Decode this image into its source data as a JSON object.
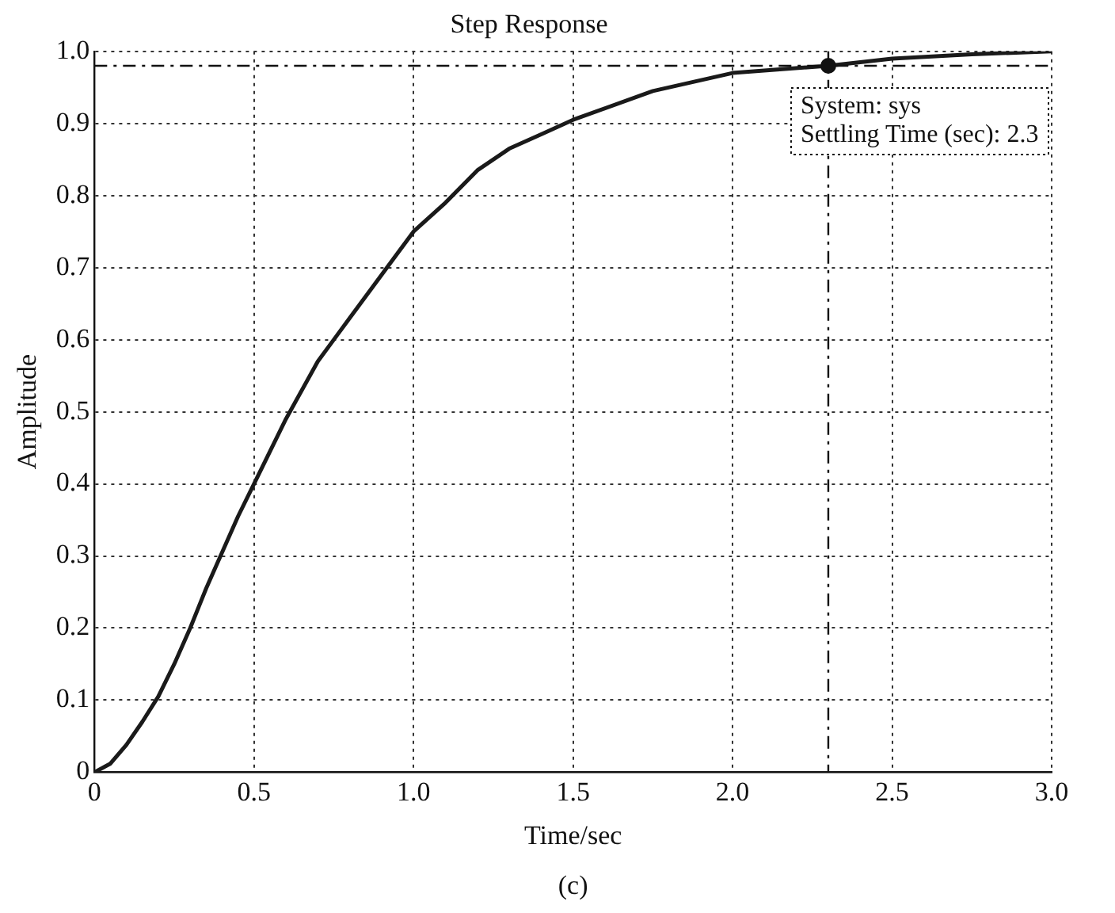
{
  "chart_data": {
    "type": "line",
    "title": "Step Response",
    "xlabel": "Time/sec",
    "ylabel": "Amplitude",
    "x": [
      0,
      0.05,
      0.1,
      0.15,
      0.2,
      0.25,
      0.3,
      0.35,
      0.4,
      0.45,
      0.5,
      0.6,
      0.7,
      0.75,
      0.8,
      0.9,
      1.0,
      1.1,
      1.2,
      1.3,
      1.4,
      1.5,
      1.75,
      2.0,
      2.3,
      2.5,
      2.75,
      3.0
    ],
    "series": [
      {
        "color": "#1a1a1a",
        "values": [
          0,
          0.012,
          0.038,
          0.07,
          0.105,
          0.15,
          0.2,
          0.255,
          0.305,
          0.355,
          0.4,
          0.49,
          0.57,
          0.6,
          0.63,
          0.69,
          0.75,
          0.79,
          0.835,
          0.865,
          0.885,
          0.905,
          0.945,
          0.97,
          0.98,
          0.99,
          0.996,
          1.0
        ]
      }
    ],
    "xlim": [
      0,
      3.0
    ],
    "xticks": [
      0,
      0.5,
      {
        "value": 1,
        "label": "1.0"
      },
      1.5,
      {
        "value": 2,
        "label": "2.0"
      },
      2.5,
      {
        "value": 3,
        "label": "3.0"
      }
    ],
    "ylim": [
      0,
      1.0
    ],
    "yticks": [
      0,
      0.1,
      0.2,
      0.3,
      0.4,
      0.5,
      0.6,
      0.7,
      0.8,
      0.9,
      {
        "value": 1,
        "label": "1.0"
      }
    ],
    "grid": true,
    "legend": false,
    "marker": "none",
    "line_style": "solid",
    "ref_lines": [
      {
        "axis": "y",
        "value": 0.98,
        "line_style": "dashed"
      },
      {
        "axis": "x",
        "value": 2.3,
        "line_style": "dashed"
      }
    ],
    "annotations": [
      {
        "text": "System: sys\nSettling Time (sec): 2.3",
        "x": 2.3,
        "y": 0.98
      },
      "(c)"
    ]
  }
}
